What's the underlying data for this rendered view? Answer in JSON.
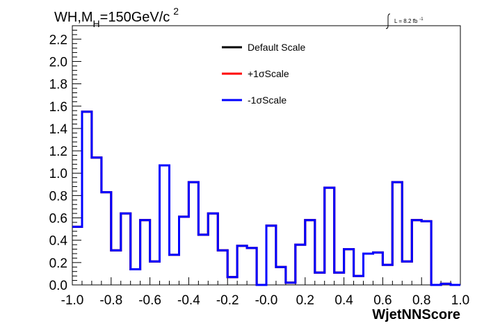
{
  "chart_data": {
    "type": "step",
    "title_main": "WH,M",
    "title_sub": "H",
    "title_rest": "=150GeV/c",
    "title_sup": "2",
    "lumi_label": "L = 8.2 fb",
    "lumi_sup": "-1",
    "xlabel": "WjetNNScore",
    "ylabel": "",
    "xlim": [
      -1.0,
      1.0
    ],
    "ylim": [
      0.0,
      2.32
    ],
    "x_ticks": [
      {
        "value": -1.0,
        "label": "-1.0"
      },
      {
        "value": -0.8,
        "label": "-0.8"
      },
      {
        "value": -0.6,
        "label": "-0.6"
      },
      {
        "value": -0.4,
        "label": "-0.4"
      },
      {
        "value": -0.2,
        "label": "-0.2"
      },
      {
        "value": 0.0,
        "label": "-0.0"
      },
      {
        "value": 0.2,
        "label": "0.2"
      },
      {
        "value": 0.4,
        "label": "0.4"
      },
      {
        "value": 0.6,
        "label": "0.6"
      },
      {
        "value": 0.8,
        "label": "0.8"
      },
      {
        "value": 1.0,
        "label": "1.0"
      }
    ],
    "y_ticks": [
      {
        "value": 0.0,
        "label": "0.0"
      },
      {
        "value": 0.2,
        "label": "0.2"
      },
      {
        "value": 0.4,
        "label": "0.4"
      },
      {
        "value": 0.6,
        "label": "0.6"
      },
      {
        "value": 0.8,
        "label": "0.8"
      },
      {
        "value": 1.0,
        "label": "1.0"
      },
      {
        "value": 1.2,
        "label": "1.2"
      },
      {
        "value": 1.4,
        "label": "1.4"
      },
      {
        "value": 1.6,
        "label": "1.6"
      },
      {
        "value": 1.8,
        "label": "1.8"
      },
      {
        "value": 2.0,
        "label": "2.0"
      },
      {
        "value": 2.2,
        "label": "2.2"
      }
    ],
    "bin_edges": [
      -1.0,
      -0.95,
      -0.9,
      -0.85,
      -0.8,
      -0.75,
      -0.7,
      -0.65,
      -0.6,
      -0.55,
      -0.5,
      -0.45,
      -0.4,
      -0.35,
      -0.3,
      -0.25,
      -0.2,
      -0.15,
      -0.1,
      -0.05,
      0.0,
      0.05,
      0.1,
      0.15,
      0.2,
      0.25,
      0.3,
      0.35,
      0.4,
      0.45,
      0.5,
      0.55,
      0.6,
      0.65,
      0.7,
      0.75,
      0.8,
      0.85,
      0.9,
      0.95,
      1.0
    ],
    "series": [
      {
        "name": "Default Scale",
        "color": "#000000",
        "values": [
          0.52,
          1.55,
          1.14,
          0.83,
          0.31,
          0.64,
          0.14,
          0.58,
          0.21,
          1.07,
          0.27,
          0.61,
          0.92,
          0.45,
          0.64,
          0.31,
          0.07,
          0.35,
          0.33,
          0.0,
          0.53,
          0.16,
          0.02,
          0.36,
          0.58,
          0.11,
          0.87,
          0.11,
          0.32,
          0.08,
          0.28,
          0.29,
          0.18,
          0.92,
          0.21,
          0.58,
          0.57,
          0.0,
          0.01,
          0.0
        ]
      },
      {
        "name": "+1σScale",
        "color": "#ff0000",
        "values": [
          0.52,
          1.55,
          1.14,
          0.83,
          0.31,
          0.64,
          0.14,
          0.58,
          0.21,
          1.07,
          0.27,
          0.61,
          0.92,
          0.45,
          0.64,
          0.31,
          0.07,
          0.35,
          0.33,
          0.0,
          0.53,
          0.16,
          0.02,
          0.36,
          0.58,
          0.11,
          0.87,
          0.11,
          0.32,
          0.08,
          0.28,
          0.29,
          0.18,
          0.92,
          0.21,
          0.58,
          0.57,
          0.0,
          0.01,
          0.0
        ]
      },
      {
        "name": "-1σScale",
        "color": "#0000ff",
        "values": [
          0.52,
          1.55,
          1.14,
          0.83,
          0.31,
          0.64,
          0.14,
          0.58,
          0.21,
          1.07,
          0.27,
          0.61,
          0.92,
          0.45,
          0.64,
          0.31,
          0.07,
          0.35,
          0.33,
          0.0,
          0.53,
          0.16,
          0.02,
          0.36,
          0.58,
          0.11,
          0.87,
          0.11,
          0.32,
          0.08,
          0.28,
          0.29,
          0.18,
          0.92,
          0.21,
          0.58,
          0.57,
          0.0,
          0.01,
          0.0
        ]
      }
    ],
    "legend_position": "top-center",
    "grid": false
  }
}
